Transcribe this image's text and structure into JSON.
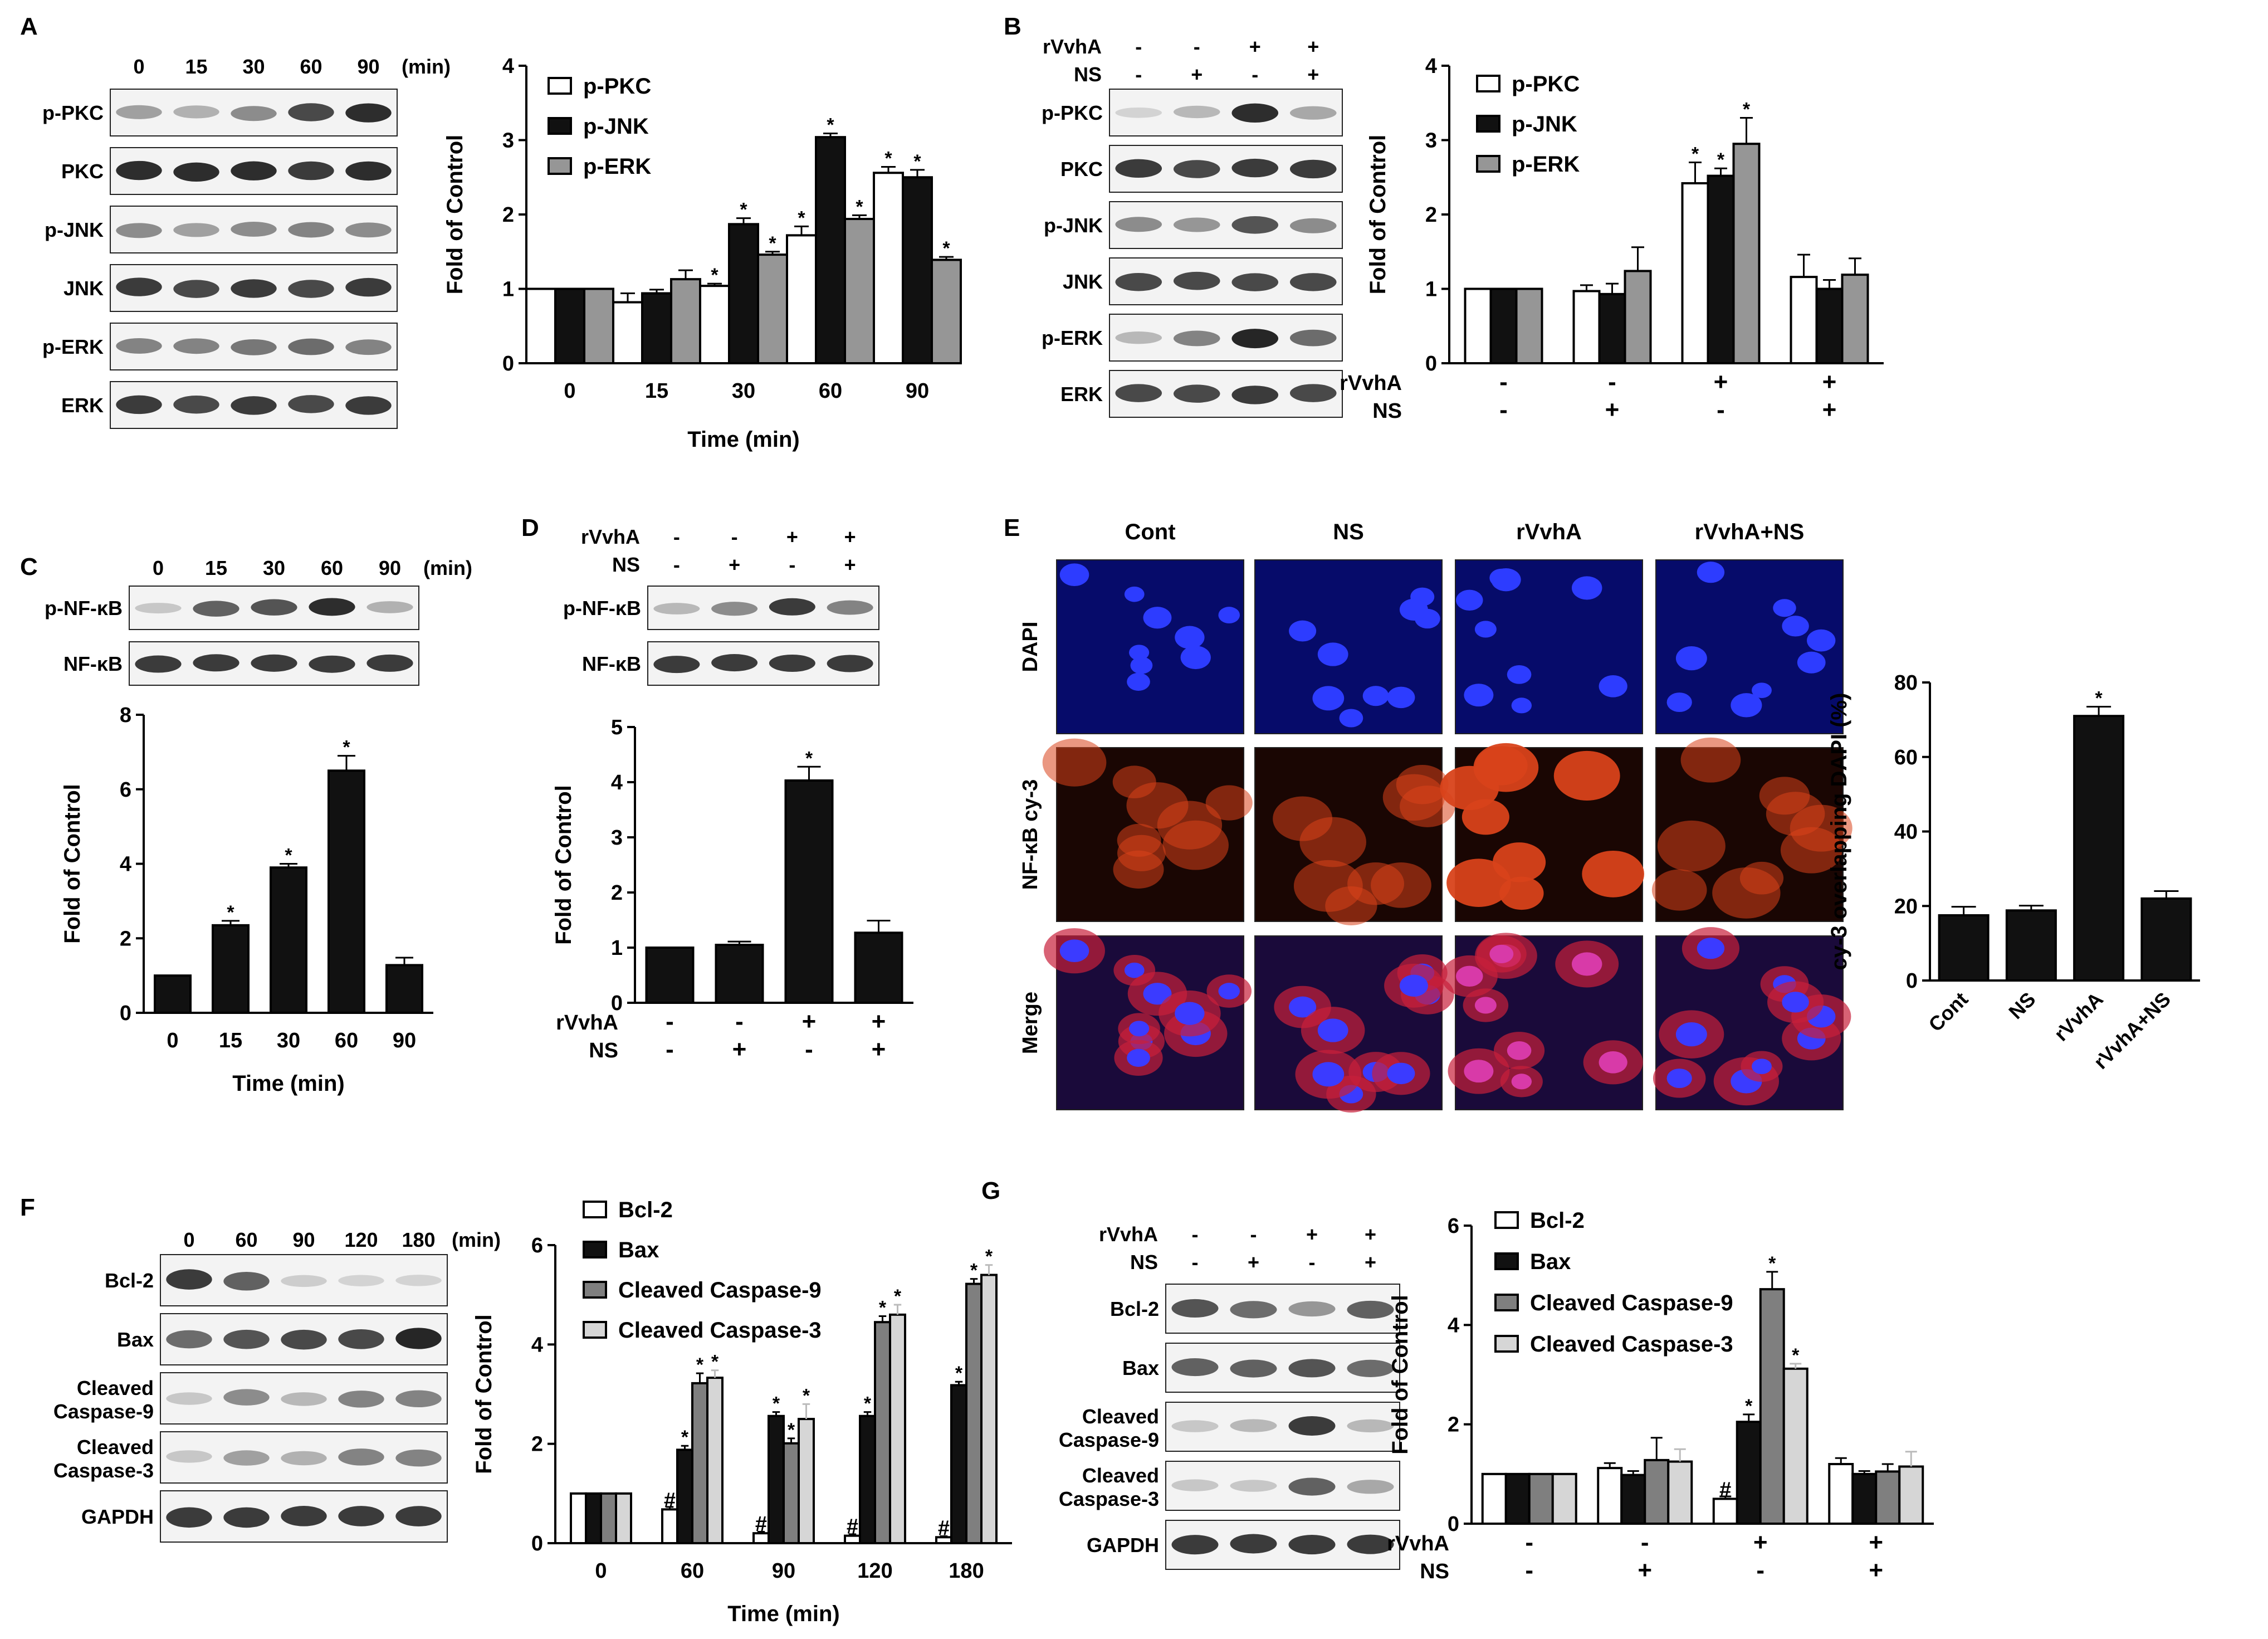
{
  "figure": {
    "panel_labels": [
      "A",
      "B",
      "C",
      "D",
      "E",
      "F",
      "G"
    ],
    "colors": {
      "black": "#111111",
      "dark_gray": "#7f7f7f",
      "mid_gray": "#969696",
      "light_gray": "#d6d6d6",
      "white": "#ffffff",
      "dapi_bg": "#060b6a",
      "dapi_nucleus": "#2d3cff",
      "cy3_bg": "#1a0603",
      "cy3_cell": "#d8421a",
      "merge_bg": "#1a0a3a"
    }
  },
  "panel_A": {
    "label": "A",
    "blot": {
      "lane_labels": [
        "0",
        "15",
        "30",
        "60",
        "90"
      ],
      "unit": "(min)",
      "rows": [
        "p-PKC",
        "PKC",
        "p-JNK",
        "JNK",
        "p-ERK",
        "ERK"
      ]
    }
  },
  "panel_B": {
    "label": "B",
    "blot": {
      "treat_rows": [
        {
          "name": "rVvhA",
          "signs": [
            "-",
            "-",
            "+",
            "+"
          ]
        },
        {
          "name": "NS",
          "signs": [
            "-",
            "+",
            "-",
            "+"
          ]
        }
      ],
      "rows": [
        "p-PKC",
        "PKC",
        "p-JNK",
        "JNK",
        "p-ERK",
        "ERK"
      ]
    }
  },
  "panel_C": {
    "label": "C",
    "blot": {
      "lane_labels": [
        "0",
        "15",
        "30",
        "60",
        "90"
      ],
      "unit": "(min)",
      "rows": [
        "p-NF-κB",
        "NF-κB"
      ]
    }
  },
  "panel_D": {
    "label": "D",
    "blot": {
      "treat_rows": [
        {
          "name": "rVvhA",
          "signs": [
            "-",
            "-",
            "+",
            "+"
          ]
        },
        {
          "name": "NS",
          "signs": [
            "-",
            "+",
            "-",
            "+"
          ]
        }
      ],
      "rows": [
        "p-NF-κB",
        "NF-κB"
      ]
    }
  },
  "panel_E": {
    "label": "E",
    "column_labels": [
      "Cont",
      "NS",
      "rVvhA",
      "rVvhA+NS"
    ],
    "row_labels": [
      "DAPI",
      "NF-κB cy-3",
      "Merge"
    ]
  },
  "panel_F": {
    "label": "F",
    "blot": {
      "lane_labels": [
        "0",
        "60",
        "90",
        "120",
        "180"
      ],
      "unit": "(min)",
      "rows": [
        "Bcl-2",
        "Bax",
        "Cleaved\nCaspase-9",
        "Cleaved\nCaspase-3",
        "GAPDH"
      ]
    }
  },
  "panel_G": {
    "label": "G",
    "blot": {
      "treat_rows": [
        {
          "name": "rVvhA",
          "signs": [
            "-",
            "-",
            "+",
            "+"
          ]
        },
        {
          "name": "NS",
          "signs": [
            "-",
            "+",
            "-",
            "+"
          ]
        }
      ],
      "rows": [
        "Bcl-2",
        "Bax",
        "Cleaved\nCaspase-9",
        "Cleaved\nCaspase-3",
        "GAPDH"
      ]
    }
  },
  "chart_data": [
    {
      "id": "A",
      "type": "bar",
      "ylabel": "Fold of Control",
      "xlabel": "Time (min)",
      "ylim": [
        0,
        4
      ],
      "yticks": [
        0,
        1,
        2,
        3,
        4
      ],
      "categories": [
        "0",
        "15",
        "30",
        "60",
        "90"
      ],
      "legend_position": "top-right",
      "series": [
        {
          "name": "p-PKC",
          "color": "#ffffff",
          "values": [
            1,
            0.82,
            1.04,
            1.72,
            2.56
          ],
          "errors": [
            0,
            0.12,
            0.03,
            0.12,
            0.08
          ],
          "marks": [
            "",
            "",
            "*",
            "*",
            "*"
          ]
        },
        {
          "name": "p-JNK",
          "color": "#111111",
          "values": [
            1,
            0.94,
            1.87,
            3.04,
            2.5
          ],
          "errors": [
            0,
            0.05,
            0.08,
            0.05,
            0.1
          ],
          "marks": [
            "",
            "",
            "*",
            "*",
            "*"
          ]
        },
        {
          "name": "p-ERK",
          "color": "#969696",
          "values": [
            1,
            1.13,
            1.46,
            1.94,
            1.39
          ],
          "errors": [
            0,
            0.12,
            0.04,
            0.05,
            0.04
          ],
          "marks": [
            "",
            "",
            "*",
            "*",
            "*"
          ]
        }
      ]
    },
    {
      "id": "B",
      "type": "bar",
      "ylabel": "Fold of Control",
      "ylim": [
        0,
        4
      ],
      "yticks": [
        0,
        1,
        2,
        3,
        4
      ],
      "categories": [
        "",
        "",
        "",
        ""
      ],
      "treatments": [
        {
          "name": "rVvhA",
          "signs": [
            "-",
            "-",
            "+",
            "+"
          ]
        },
        {
          "name": "NS",
          "signs": [
            "-",
            "+",
            "-",
            "+"
          ]
        }
      ],
      "legend_position": "top-left",
      "series": [
        {
          "name": "p-PKC",
          "color": "#ffffff",
          "values": [
            1,
            0.97,
            2.42,
            1.16
          ],
          "errors": [
            0,
            0.08,
            0.28,
            0.3
          ],
          "marks": [
            "",
            "",
            "*",
            ""
          ]
        },
        {
          "name": "p-JNK",
          "color": "#111111",
          "values": [
            1,
            0.93,
            2.52,
            1.0
          ],
          "errors": [
            0,
            0.14,
            0.1,
            0.12
          ],
          "marks": [
            "",
            "",
            "*",
            ""
          ]
        },
        {
          "name": "p-ERK",
          "color": "#969696",
          "values": [
            1,
            1.24,
            2.95,
            1.19
          ],
          "errors": [
            0,
            0.32,
            0.35,
            0.22
          ],
          "marks": [
            "",
            "",
            "*",
            ""
          ]
        }
      ]
    },
    {
      "id": "C",
      "type": "bar",
      "ylabel": "Fold of Control",
      "xlabel": "Time (min)",
      "ylim": [
        0,
        8
      ],
      "yticks": [
        0,
        2,
        4,
        6,
        8
      ],
      "categories": [
        "0",
        "15",
        "30",
        "60",
        "90"
      ],
      "series": [
        {
          "name": "",
          "color": "#111111",
          "values": [
            1,
            2.35,
            3.9,
            6.5,
            1.28
          ],
          "errors": [
            0,
            0.12,
            0.1,
            0.4,
            0.2
          ],
          "marks": [
            "",
            "*",
            "*",
            "*",
            ""
          ]
        }
      ]
    },
    {
      "id": "D",
      "type": "bar",
      "ylabel": "Fold of Control",
      "ylim": [
        0,
        5
      ],
      "yticks": [
        0,
        1,
        2,
        3,
        4,
        5
      ],
      "categories": [
        "",
        "",
        "",
        ""
      ],
      "treatments": [
        {
          "name": "rVvhA",
          "signs": [
            "-",
            "-",
            "+",
            "+"
          ]
        },
        {
          "name": "NS",
          "signs": [
            "-",
            "+",
            "-",
            "+"
          ]
        }
      ],
      "series": [
        {
          "name": "",
          "color": "#111111",
          "values": [
            1,
            1.05,
            4.03,
            1.27
          ],
          "errors": [
            0,
            0.06,
            0.25,
            0.22
          ],
          "marks": [
            "",
            "",
            "*",
            ""
          ]
        }
      ]
    },
    {
      "id": "E",
      "type": "bar",
      "ylabel": "cy-3 overlapping DAPI (%)",
      "ylim": [
        0,
        80
      ],
      "yticks": [
        0,
        20,
        40,
        60,
        80
      ],
      "categories": [
        "Cont",
        "NS",
        "rVvhA",
        "rVvhA+NS"
      ],
      "rotate_xticks": true,
      "series": [
        {
          "name": "",
          "color": "#111111",
          "values": [
            17.5,
            18.8,
            71,
            22
          ],
          "errors": [
            2.3,
            1.3,
            2.5,
            2
          ],
          "marks": [
            "",
            "",
            "*",
            ""
          ]
        }
      ]
    },
    {
      "id": "F",
      "type": "bar",
      "ylabel": "Fold of Control",
      "xlabel": "Time (min)",
      "ylim": [
        0,
        6
      ],
      "yticks": [
        0,
        2,
        4,
        6
      ],
      "categories": [
        "0",
        "60",
        "90",
        "120",
        "180"
      ],
      "legend_position": "top-left",
      "series": [
        {
          "name": "Bcl-2",
          "color": "#ffffff",
          "values": [
            1,
            0.68,
            0.2,
            0.15,
            0.12
          ],
          "errors": [
            0,
            0.05,
            0.03,
            0.03,
            0.02
          ],
          "marks": [
            "",
            "#",
            "#",
            "#",
            "#"
          ]
        },
        {
          "name": "Bax",
          "color": "#111111",
          "values": [
            1,
            1.88,
            2.56,
            2.56,
            3.18
          ],
          "errors": [
            0,
            0.08,
            0.08,
            0.08,
            0.07
          ],
          "marks": [
            "",
            "*",
            "*",
            "*",
            "*"
          ]
        },
        {
          "name": "Cleaved Caspase-9",
          "color": "#7f7f7f",
          "values": [
            1,
            3.22,
            2.01,
            4.45,
            5.22
          ],
          "errors": [
            0,
            0.2,
            0.1,
            0.12,
            0.1
          ],
          "marks": [
            "",
            "*",
            "*",
            "*",
            "*"
          ]
        },
        {
          "name": "Cleaved Caspase-3",
          "color": "#d6d6d6",
          "values": [
            1,
            3.33,
            2.5,
            4.6,
            5.4
          ],
          "errors": [
            0,
            0.15,
            0.3,
            0.2,
            0.2
          ],
          "marks": [
            "",
            "*",
            "*",
            "*",
            "*"
          ]
        }
      ]
    },
    {
      "id": "G",
      "type": "bar",
      "ylabel": "Fold of Control",
      "ylim": [
        0,
        6
      ],
      "yticks": [
        0,
        2,
        4,
        6
      ],
      "categories": [
        "",
        "",
        "",
        ""
      ],
      "treatments": [
        {
          "name": "rVvhA",
          "signs": [
            "-",
            "-",
            "+",
            "+"
          ]
        },
        {
          "name": "NS",
          "signs": [
            "-",
            "+",
            "-",
            "+"
          ]
        }
      ],
      "legend_position": "top-left",
      "series": [
        {
          "name": "Bcl-2",
          "color": "#ffffff",
          "values": [
            1,
            1.12,
            0.5,
            1.2
          ],
          "errors": [
            0,
            0.1,
            0.05,
            0.12
          ],
          "marks": [
            "",
            "",
            "#",
            ""
          ]
        },
        {
          "name": "Bax",
          "color": "#111111",
          "values": [
            1,
            0.98,
            2.05,
            1.0
          ],
          "errors": [
            0,
            0.08,
            0.15,
            0.06
          ],
          "marks": [
            "",
            "",
            "*",
            ""
          ]
        },
        {
          "name": "Cleaved Caspase-9",
          "color": "#7f7f7f",
          "values": [
            1,
            1.28,
            4.72,
            1.05
          ],
          "errors": [
            0,
            0.45,
            0.35,
            0.15
          ],
          "marks": [
            "",
            "",
            "*",
            ""
          ]
        },
        {
          "name": "Cleaved Caspase-3",
          "color": "#d6d6d6",
          "values": [
            1,
            1.25,
            3.12,
            1.15
          ],
          "errors": [
            0,
            0.25,
            0.1,
            0.3
          ],
          "marks": [
            "",
            "",
            "*",
            ""
          ]
        }
      ]
    }
  ]
}
